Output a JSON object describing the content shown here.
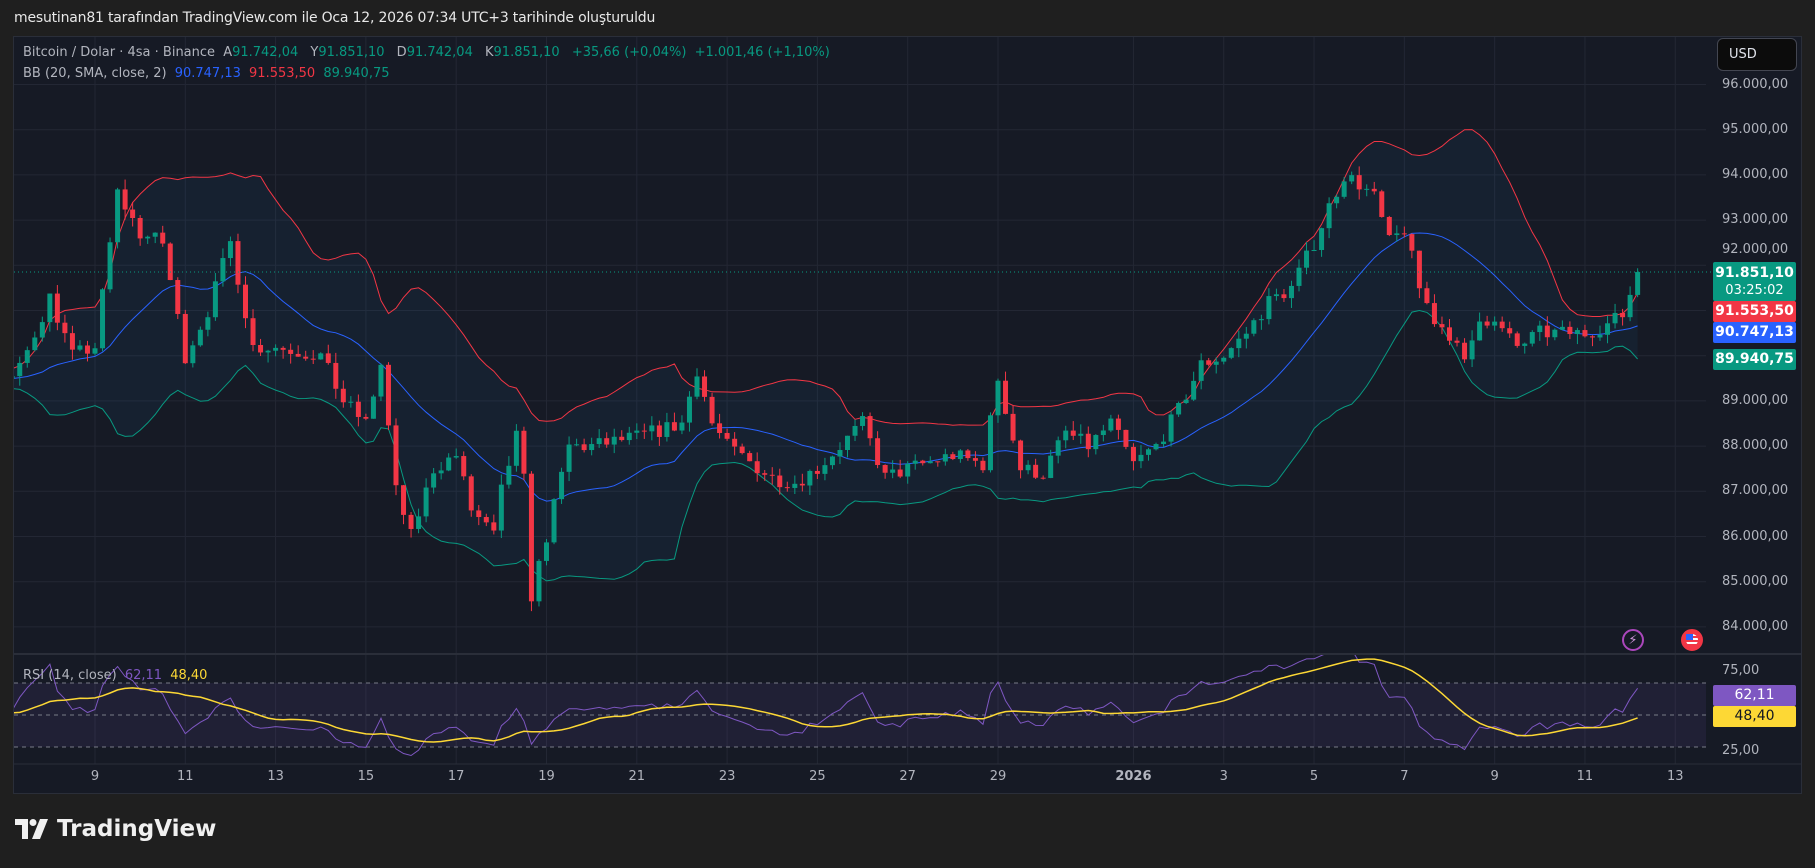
{
  "credit": "mesutinan81 tarafından TradingView.com ile Oca 12, 2026 07:34 UTC+3 tarihinde oluşturuldu",
  "legend": {
    "symbol": "Bitcoin / Dolar · 4sa · Binance",
    "open_label": "A",
    "open": "91.742,04",
    "high_label": "Y",
    "high": "91.851,10",
    "low_label": "D",
    "low": "91.742,04",
    "close_label": "K",
    "close": "91.851,10",
    "change": "+35,66 (+0,04%)",
    "change_period": "+1.001,46 (+1,10%)",
    "bb_title": "BB (20, SMA, close, 2)",
    "bb_basis": "90.747,13",
    "bb_upper": "91.553,50",
    "bb_lower": "89.940,75",
    "rsi_title": "RSI (14, close)",
    "rsi_value": "62,11",
    "rsi_ma": "48,40"
  },
  "currency_button": "USD",
  "price_axis": [
    "96.000,00",
    "95.000,00",
    "94.000,00",
    "93.000,00",
    "92.000,00",
    "89.000,00",
    "88.000,00",
    "87.000,00",
    "86.000,00",
    "85.000,00",
    "84.000,00"
  ],
  "price_tags": {
    "last": "91.851,10",
    "countdown": "03:25:02",
    "upper": "91.553,50",
    "basis": "90.747,13",
    "lower": "89.940,75"
  },
  "rsi_axis": [
    "75,00",
    "25,00"
  ],
  "rsi_tags": {
    "rsi": "62,11",
    "ma": "48,40"
  },
  "time_axis": [
    "9",
    "11",
    "13",
    "15",
    "17",
    "19",
    "21",
    "23",
    "25",
    "27",
    "29",
    "2026",
    "3",
    "5",
    "7",
    "9",
    "11",
    "13"
  ],
  "icons": {
    "lightning": "lightning-icon",
    "flag": "us-flag-icon"
  },
  "brand": "TradingView",
  "colors": {
    "up": "#089981",
    "down": "#f23645",
    "basis": "#2962ff",
    "upper": "#f23645",
    "lower": "#089981",
    "rsi": "#7e57c2",
    "rsi_ma": "#fdd835",
    "background": "#161a25"
  },
  "chart_data": {
    "type": "candlestick",
    "interval": "4h",
    "symbol": "BTCUSD",
    "ylim": [
      83500,
      96500
    ],
    "rsi_levels": [
      70,
      50,
      30
    ],
    "price_path_approx": [
      [
        "2025-12-07 06:00",
        89500
      ],
      [
        "2025-12-08 00:00",
        91300
      ],
      [
        "2025-12-08 12:00",
        90000
      ],
      [
        "2025-12-09 00:00",
        90200
      ],
      [
        "2025-12-09 12:00",
        93600
      ],
      [
        "2025-12-10 00:00",
        92700
      ],
      [
        "2025-12-10 12:00",
        92500
      ],
      [
        "2025-12-11 00:00",
        90000
      ],
      [
        "2025-12-11 12:00",
        91000
      ],
      [
        "2025-12-12 00:00",
        92500
      ],
      [
        "2025-12-12 12:00",
        90200
      ],
      [
        "2025-12-13 00:00",
        90200
      ],
      [
        "2025-12-14 00:00",
        90000
      ],
      [
        "2025-12-14 12:00",
        89000
      ],
      [
        "2025-12-15 00:00",
        88500
      ],
      [
        "2025-12-15 08:00",
        89800
      ],
      [
        "2025-12-15 16:00",
        87000
      ],
      [
        "2025-12-16 00:00",
        86000
      ],
      [
        "2025-12-16 12:00",
        87500
      ],
      [
        "2025-12-17 00:00",
        87800
      ],
      [
        "2025-12-17 08:00",
        86600
      ],
      [
        "2025-12-17 20:00",
        86000
      ],
      [
        "2025-12-18 00:00",
        87000
      ],
      [
        "2025-12-18 10:00",
        88500
      ],
      [
        "2025-12-18 16:00",
        84700
      ],
      [
        "2025-12-19 00:00",
        86000
      ],
      [
        "2025-12-19 12:00",
        88000
      ],
      [
        "2025-12-20 00:00",
        88000
      ],
      [
        "2025-12-21 00:00",
        88200
      ],
      [
        "2025-12-22 00:00",
        88500
      ],
      [
        "2025-12-22 08:00",
        89700
      ],
      [
        "2025-12-22 16:00",
        88500
      ],
      [
        "2025-12-23 00:00",
        88000
      ],
      [
        "2025-12-24 00:00",
        87300
      ],
      [
        "2025-12-24 12:00",
        87200
      ],
      [
        "2025-12-25 00:00",
        87500
      ],
      [
        "2025-12-25 12:00",
        88000
      ],
      [
        "2025-12-26 00:00",
        88500
      ],
      [
        "2025-12-26 12:00",
        87300
      ],
      [
        "2025-12-27 00:00",
        87500
      ],
      [
        "2025-12-28 00:00",
        87800
      ],
      [
        "2025-12-28 16:00",
        87600
      ],
      [
        "2025-12-29 00:00",
        89500
      ],
      [
        "2025-12-29 12:00",
        87500
      ],
      [
        "2025-12-30 00:00",
        87400
      ],
      [
        "2025-12-30 12:00",
        88300
      ],
      [
        "2025-12-31 00:00",
        88000
      ],
      [
        "2025-12-31 12:00",
        88500
      ],
      [
        "2026-01-01 00:00",
        87600
      ],
      [
        "2026-01-01 12:00",
        88000
      ],
      [
        "2026-01-02 00:00",
        88800
      ],
      [
        "2026-01-02 12:00",
        89800
      ],
      [
        "2026-01-03 00:00",
        90000
      ],
      [
        "2026-01-03 12:00",
        90500
      ],
      [
        "2026-01-04 00:00",
        91200
      ],
      [
        "2026-01-04 12:00",
        91500
      ],
      [
        "2026-01-05 00:00",
        92500
      ],
      [
        "2026-01-05 08:00",
        93300
      ],
      [
        "2026-01-05 16:00",
        94000
      ],
      [
        "2026-01-06 00:00",
        93800
      ],
      [
        "2026-01-06 08:00",
        93500
      ],
      [
        "2026-01-06 16:00",
        92500
      ],
      [
        "2026-01-07 00:00",
        92800
      ],
      [
        "2026-01-07 08:00",
        91500
      ],
      [
        "2026-01-07 16:00",
        90800
      ],
      [
        "2026-01-08 00:00",
        90500
      ],
      [
        "2026-01-08 08:00",
        89800
      ],
      [
        "2026-01-08 16:00",
        90900
      ],
      [
        "2026-01-09 00:00",
        90700
      ],
      [
        "2026-01-09 12:00",
        90200
      ],
      [
        "2026-01-10 00:00",
        90500
      ],
      [
        "2026-01-10 12:00",
        90500
      ],
      [
        "2026-01-11 00:00",
        90500
      ],
      [
        "2026-01-11 12:00",
        90700
      ],
      [
        "2026-01-11 20:00",
        90900
      ],
      [
        "2026-01-12 04:00",
        91851
      ]
    ]
  }
}
